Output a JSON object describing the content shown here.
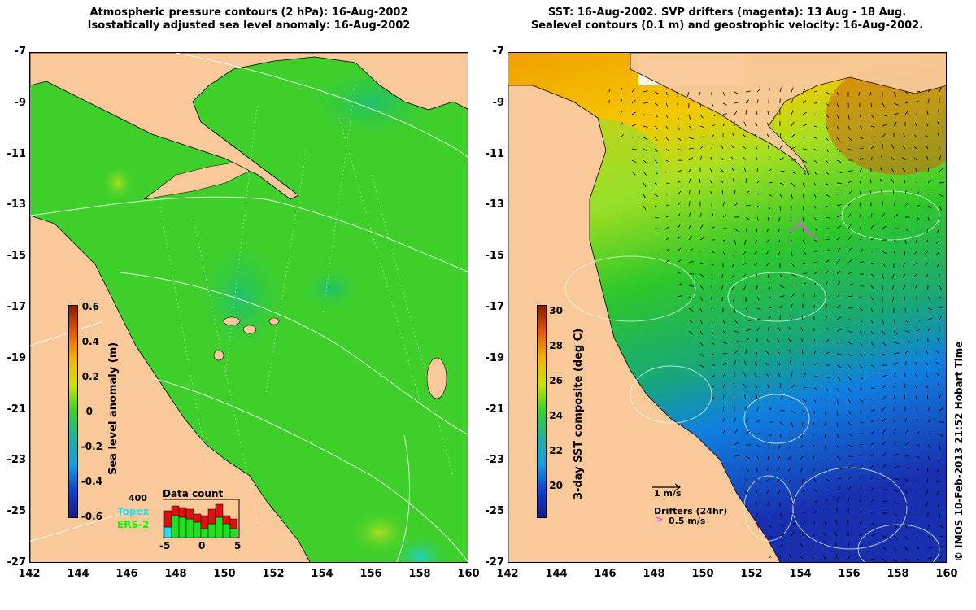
{
  "left_panel": {
    "title_line1": "Atmospheric pressure contours (2 hPa): 16-Aug-2002",
    "title_line2": "Isostatically adjusted sea level anomaly: 16-Aug-2002",
    "colorbar_label": "Sea level anomaly (m)",
    "colorbar_ticks": [
      "0.6",
      "0.4",
      "0.2",
      "0",
      "-0.2",
      "-0.4",
      "-0.6"
    ],
    "inset": {
      "title": "Data count",
      "count_label": "400",
      "legend": [
        "Topex",
        "ERS-2"
      ],
      "x_ticks": [
        "-5",
        "0",
        "5"
      ]
    }
  },
  "right_panel": {
    "title_line1": "SST: 16-Aug-2002. SVP drifters (magenta): 13 Aug - 18 Aug.",
    "title_line2": "Sealevel contours (0.1 m) and geostrophic velocity: 16-Aug-2002.",
    "colorbar_label": "3-day SST composite (deg C)",
    "colorbar_ticks": [
      "30",
      "28",
      "26",
      "24",
      "22",
      "20"
    ],
    "velocity_scale": "1 m/s",
    "drifters_label": "Drifters (24hr)",
    "drifters_scale": "0.5 m/s"
  },
  "y_ticks": [
    "-7",
    "-9",
    "-11",
    "-13",
    "-15",
    "-17",
    "-19",
    "-21",
    "-23",
    "-25",
    "-27"
  ],
  "x_ticks": [
    "142",
    "144",
    "146",
    "148",
    "150",
    "152",
    "154",
    "156",
    "158",
    "160"
  ],
  "credit": "© IMOS 10-Feb-2013 21:52 Hobart Time",
  "colors": {
    "land": "#f9c99a",
    "ocean_green": "#3ecf2a",
    "coast": "#000000"
  }
}
